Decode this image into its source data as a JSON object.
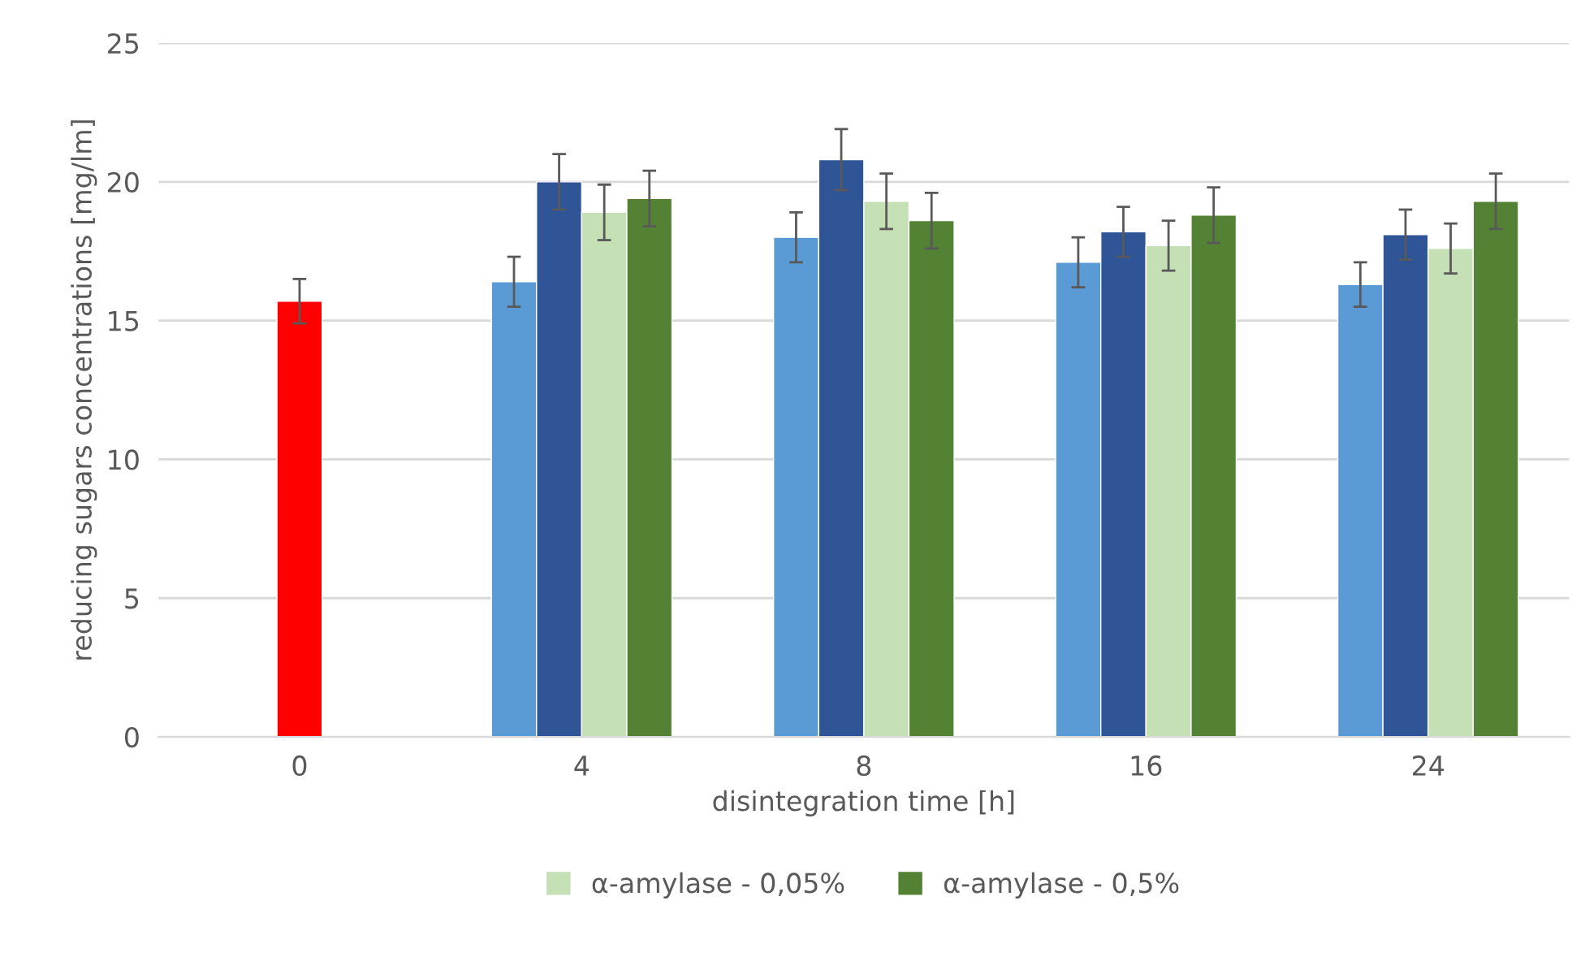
{
  "chart_data": {
    "type": "bar",
    "xlabel": "disintegration time [h]",
    "ylabel": "reducing sugars concentrations [mg/lm]",
    "categories": [
      "0",
      "4",
      "8",
      "16",
      "24"
    ],
    "series": [
      {
        "color": "#ff0000",
        "values": [
          15.7,
          null,
          null,
          null,
          null
        ],
        "errors": [
          0.8,
          null,
          null,
          null,
          null
        ]
      },
      {
        "color": "#5b9bd5",
        "values": [
          null,
          16.4,
          18.0,
          17.1,
          16.3
        ],
        "errors": [
          null,
          0.9,
          0.9,
          0.9,
          0.8
        ]
      },
      {
        "color": "#2f5597",
        "values": [
          null,
          20.0,
          20.8,
          18.2,
          18.1
        ],
        "errors": [
          null,
          1.0,
          1.1,
          0.9,
          0.9
        ]
      },
      {
        "name": "α-amylase - 0,05%",
        "color": "#c5e0b4",
        "values": [
          null,
          18.9,
          19.3,
          17.7,
          17.6
        ],
        "errors": [
          null,
          1.0,
          1.0,
          0.9,
          0.9
        ]
      },
      {
        "name": "α-amylase - 0,5%",
        "color": "#548235",
        "values": [
          null,
          19.4,
          18.6,
          18.8,
          19.3
        ],
        "errors": [
          null,
          1.0,
          1.0,
          1.0,
          1.0
        ]
      }
    ],
    "ylim": [
      0,
      25
    ],
    "yticks": [
      0,
      5,
      10,
      15,
      20,
      25
    ],
    "grid": "y",
    "legend": "bottom"
  }
}
